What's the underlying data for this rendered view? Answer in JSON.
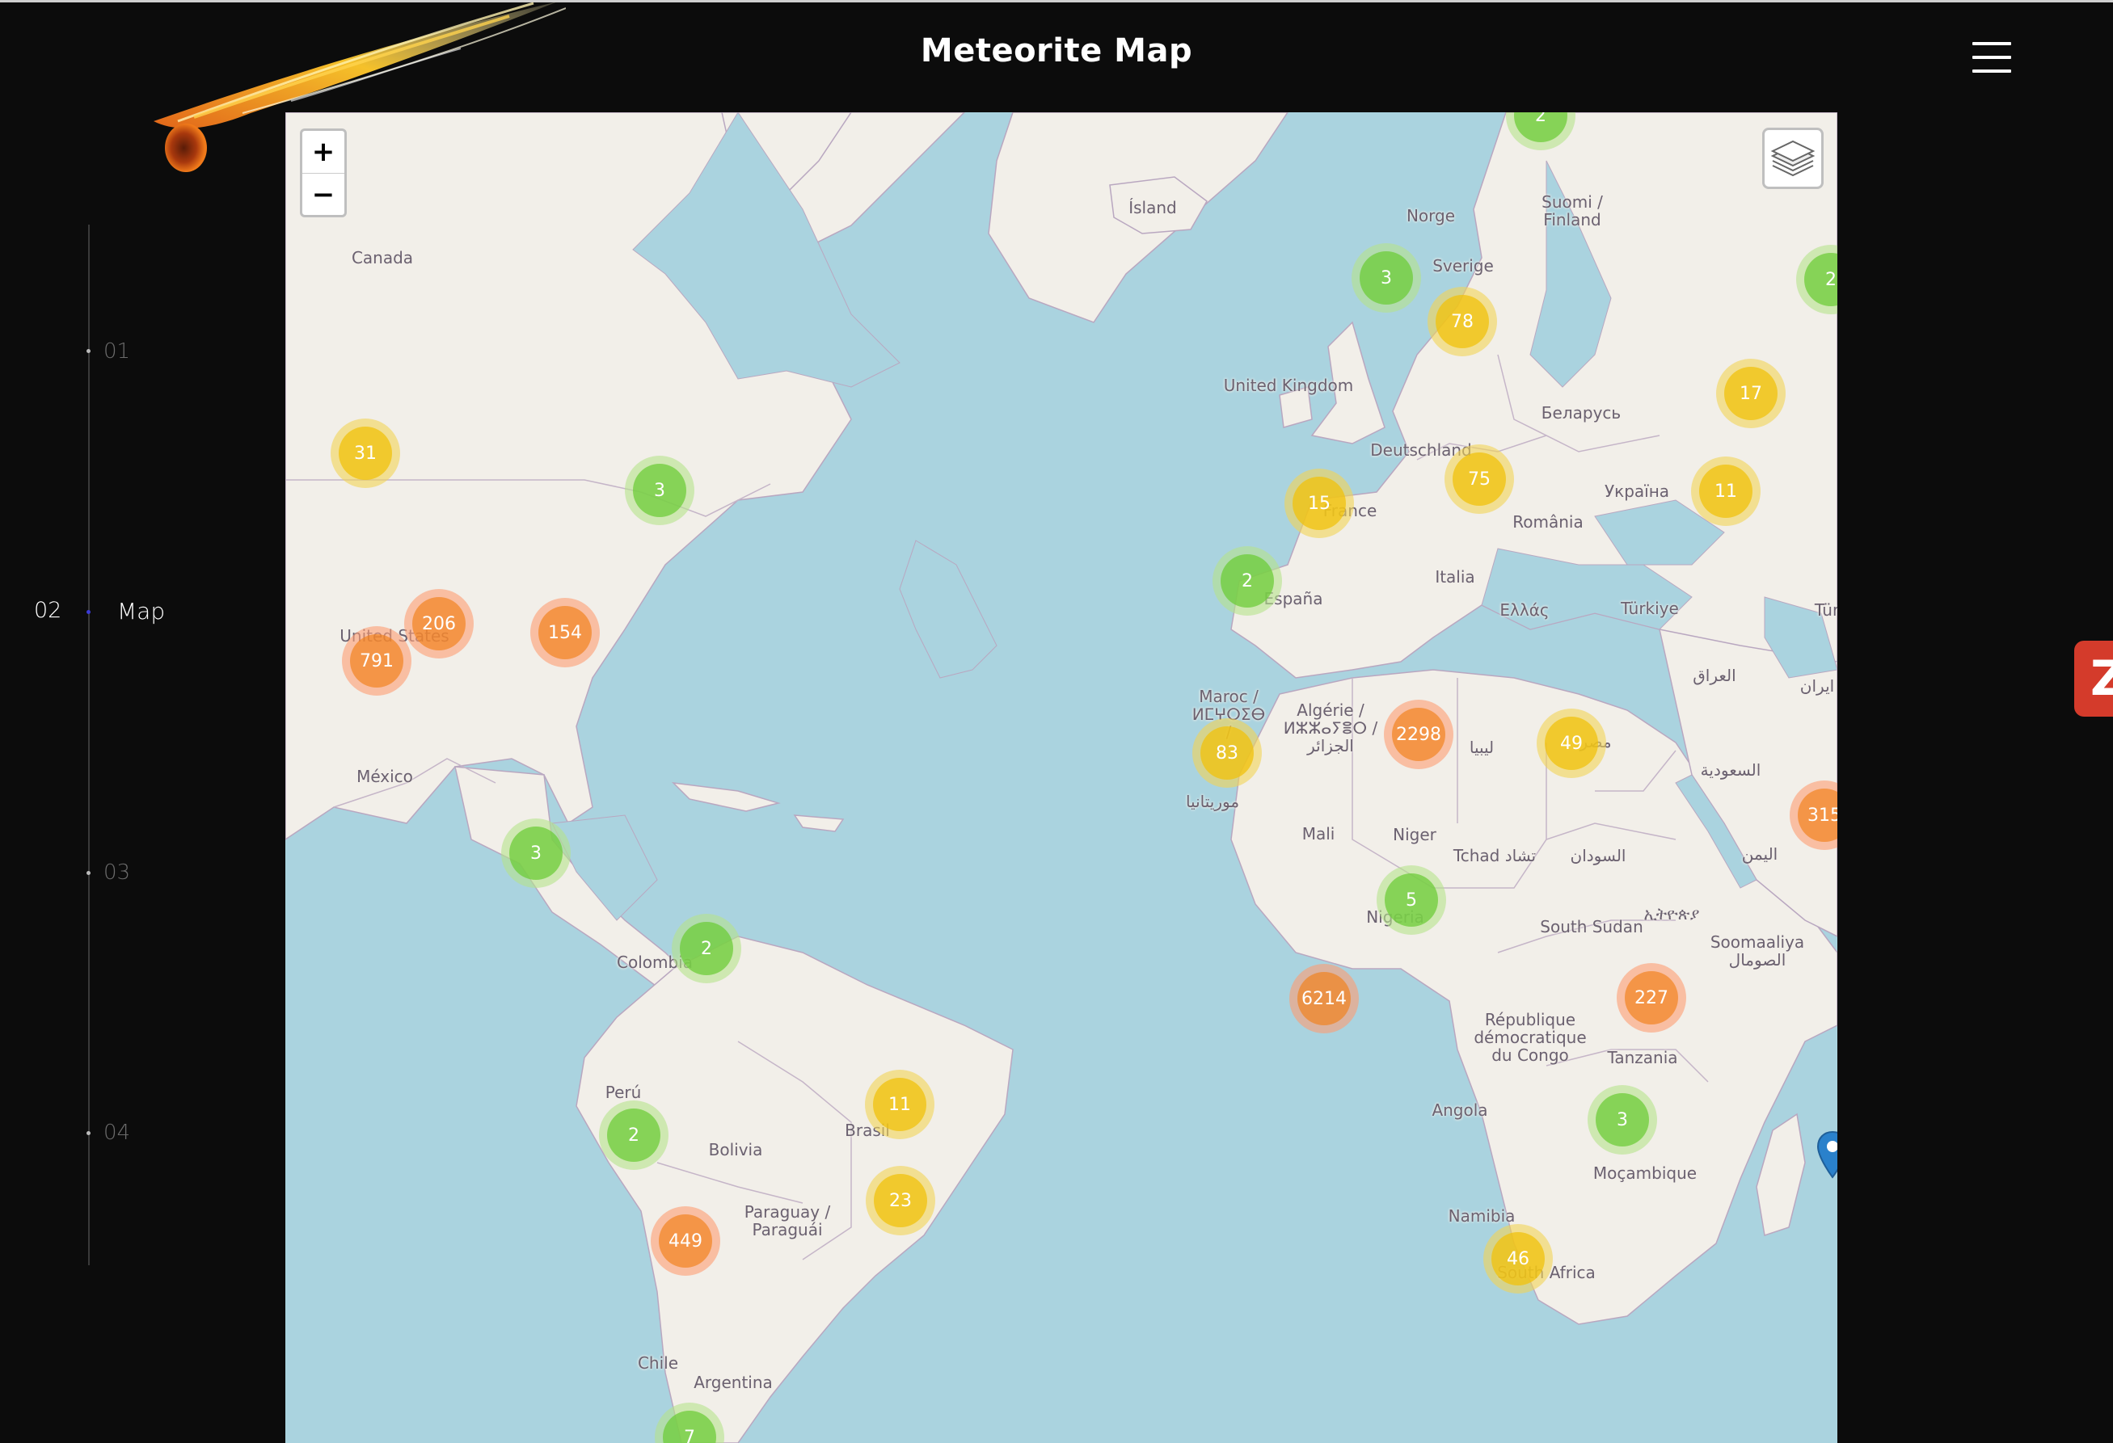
{
  "header": {
    "title": "Meteorite Map",
    "menu_icon": "hamburger-menu-icon"
  },
  "colors": {
    "background": "#0c0c0c",
    "water": "#aad3df",
    "land": "#f2efe9",
    "small_cluster": "#6ecc39",
    "medium_cluster": "#f0c20c",
    "large_cluster": "#f18017"
  },
  "nav": {
    "active_number": "02",
    "active_label": "Map",
    "items": [
      "01",
      "03",
      "04"
    ]
  },
  "map": {
    "zoom_in": "+",
    "zoom_out": "−",
    "layers_icon": "layers-icon",
    "labels": [
      "Canada",
      "United States",
      "México",
      "Colombia",
      "Perú",
      "Bolivia",
      "Brasil",
      "Paraguay / Paraguái",
      "Chile",
      "Argentina",
      "Ísland",
      "Norge",
      "Sverige",
      "Suomi / Finland",
      "United Kingdom",
      "Deutschland",
      "France",
      "España",
      "Italia",
      "Ελλάς",
      "Türkiye",
      "Беларусь",
      "Україна",
      "România",
      "Maroc / ⵍⵎⵖⵔⵉⴱ /",
      "Algérie / ⵍⵣⵣⴰⵢⴻⵔ / الجزائر",
      "ليبيا",
      "مصر",
      "موريتانيا",
      "Mali",
      "Niger",
      "Tchad تشاد",
      "السودان",
      "Nigeria",
      "South Sudan",
      "ኢትዮጵያ",
      "Soomaaliya الصومال",
      "République démocratique du Congo",
      "Tanzania",
      "Angola",
      "Moçambique",
      "Namibia",
      "South Africa",
      "العراق",
      "ایران",
      "السعودية",
      "اليمن",
      "Tür"
    ],
    "clusters": [
      "3",
      "78",
      "17",
      "31",
      "3",
      "15",
      "75",
      "11",
      "2",
      "206",
      "154",
      "791",
      "2298",
      "49",
      "83",
      "315",
      "3",
      "5",
      "2",
      "6214",
      "227",
      "11",
      "2",
      "3",
      "23",
      "449",
      "46",
      "2",
      "2",
      "7"
    ],
    "sidebar_tab": "Z"
  }
}
